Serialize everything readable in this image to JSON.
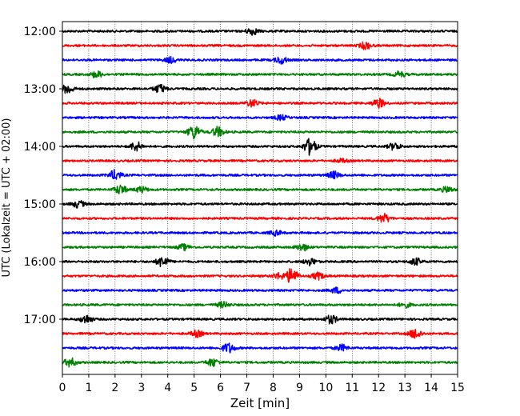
{
  "chart_data": {
    "type": "line",
    "title": "",
    "xlabel": "Zeit  [min]",
    "ylabel": "UTC (Lokalzeit = UTC + 02:00)",
    "xlim": [
      0,
      15
    ],
    "x_ticks": [
      0,
      1,
      2,
      3,
      4,
      5,
      6,
      7,
      8,
      9,
      10,
      11,
      12,
      13,
      14,
      15
    ],
    "grid": "vertical dotted",
    "y_tick_labels": [
      "12:00",
      "13:00",
      "14:00",
      "15:00",
      "16:00",
      "17:00"
    ],
    "color_cycle": [
      "#000000",
      "#ff0000",
      "#0000ff",
      "#008000"
    ],
    "traces": [
      {
        "start": "12:00",
        "color": "#000000",
        "events": [
          [
            7.2,
            1.0
          ]
        ]
      },
      {
        "start": "12:15",
        "color": "#ff0000",
        "events": [
          [
            11.5,
            1.0
          ]
        ]
      },
      {
        "start": "12:30",
        "color": "#0000ff",
        "events": [
          [
            4.1,
            0.8
          ],
          [
            8.3,
            1.0
          ]
        ]
      },
      {
        "start": "12:45",
        "color": "#008000",
        "events": [
          [
            1.3,
            0.9
          ],
          [
            12.8,
            0.8
          ]
        ]
      },
      {
        "start": "13:00",
        "color": "#000000",
        "events": [
          [
            0.2,
            1.3
          ],
          [
            3.7,
            1.2
          ]
        ]
      },
      {
        "start": "13:15",
        "color": "#ff0000",
        "events": [
          [
            7.2,
            1.0
          ],
          [
            12.0,
            1.3
          ]
        ]
      },
      {
        "start": "13:30",
        "color": "#0000ff",
        "events": [
          [
            8.3,
            0.7
          ]
        ]
      },
      {
        "start": "13:45",
        "color": "#008000",
        "events": [
          [
            5.0,
            2.0
          ],
          [
            5.9,
            1.4
          ]
        ]
      },
      {
        "start": "14:00",
        "color": "#000000",
        "events": [
          [
            2.8,
            1.3
          ],
          [
            9.4,
            2.4
          ],
          [
            12.6,
            1.0
          ]
        ]
      },
      {
        "start": "14:15",
        "color": "#ff0000",
        "events": [
          [
            10.6,
            0.5
          ]
        ]
      },
      {
        "start": "14:30",
        "color": "#0000ff",
        "events": [
          [
            2.0,
            1.4
          ],
          [
            10.3,
            1.0
          ]
        ]
      },
      {
        "start": "14:45",
        "color": "#008000",
        "events": [
          [
            2.2,
            1.3
          ],
          [
            3.0,
            0.8
          ],
          [
            14.6,
            0.8
          ]
        ]
      },
      {
        "start": "15:00",
        "color": "#000000",
        "events": [
          [
            0.6,
            1.0
          ]
        ]
      },
      {
        "start": "15:15",
        "color": "#ff0000",
        "events": [
          [
            12.2,
            1.3
          ]
        ]
      },
      {
        "start": "15:30",
        "color": "#0000ff",
        "events": [
          [
            8.1,
            0.7
          ]
        ]
      },
      {
        "start": "15:45",
        "color": "#008000",
        "events": [
          [
            4.6,
            0.8
          ],
          [
            9.1,
            1.0
          ]
        ]
      },
      {
        "start": "16:00",
        "color": "#000000",
        "events": [
          [
            3.8,
            1.5
          ],
          [
            9.4,
            1.0
          ],
          [
            13.4,
            1.0
          ]
        ]
      },
      {
        "start": "16:15",
        "color": "#ff0000",
        "events": [
          [
            8.7,
            2.2
          ],
          [
            9.7,
            1.0
          ],
          [
            8.2,
            0.8
          ]
        ]
      },
      {
        "start": "16:30",
        "color": "#0000ff",
        "events": [
          [
            10.4,
            0.8
          ]
        ]
      },
      {
        "start": "16:45",
        "color": "#008000",
        "events": [
          [
            6.1,
            0.8
          ],
          [
            13.0,
            0.7
          ]
        ]
      },
      {
        "start": "17:00",
        "color": "#000000",
        "events": [
          [
            0.9,
            1.2
          ],
          [
            10.2,
            1.2
          ]
        ]
      },
      {
        "start": "17:15",
        "color": "#ff0000",
        "events": [
          [
            5.1,
            0.9
          ],
          [
            13.4,
            1.4
          ]
        ]
      },
      {
        "start": "17:30",
        "color": "#0000ff",
        "events": [
          [
            6.3,
            1.4
          ],
          [
            10.6,
            0.9
          ]
        ]
      },
      {
        "start": "17:45",
        "color": "#008000",
        "events": [
          [
            0.3,
            1.2
          ],
          [
            5.7,
            1.1
          ]
        ]
      }
    ]
  }
}
